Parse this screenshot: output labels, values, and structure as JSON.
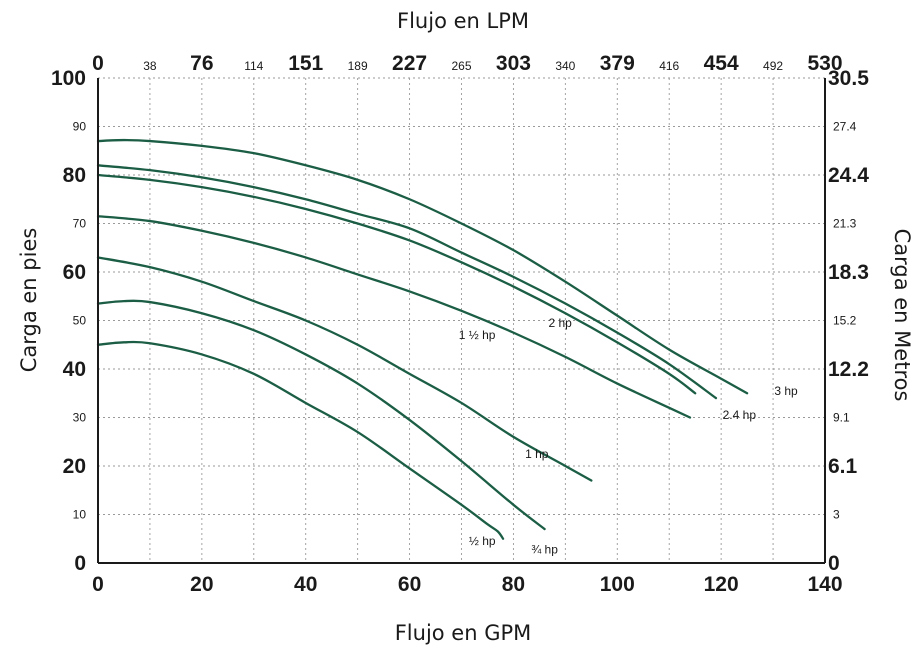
{
  "chart_data": {
    "type": "line",
    "title": "",
    "xlabel": "Flujo en GPM",
    "ylabel": "Carga en pies",
    "x2label": "Flujo en LPM",
    "y2label": "Carga en Metros",
    "xlim": [
      0,
      140
    ],
    "ylim": [
      0,
      100
    ],
    "grid": true,
    "colors": {
      "curve": "#1b5e45",
      "axis": "#1a1a1a",
      "grid": "#9a9a9a"
    },
    "x_ticks": [
      "0",
      "20",
      "40",
      "60",
      "80",
      "100",
      "120",
      "140"
    ],
    "x_tick_values": [
      0,
      20,
      40,
      60,
      80,
      100,
      120,
      140
    ],
    "y_ticks": [
      {
        "value": 100,
        "label": "100",
        "major": true
      },
      {
        "value": 90,
        "label": "90",
        "major": false
      },
      {
        "value": 80,
        "label": "80",
        "major": true
      },
      {
        "value": 70,
        "label": "70",
        "major": false
      },
      {
        "value": 60,
        "label": "60",
        "major": true
      },
      {
        "value": 50,
        "label": "50",
        "major": false
      },
      {
        "value": 40,
        "label": "40",
        "major": true
      },
      {
        "value": 30,
        "label": "30",
        "major": false
      },
      {
        "value": 20,
        "label": "20",
        "major": true
      },
      {
        "value": 10,
        "label": "10",
        "major": false
      },
      {
        "value": 0,
        "label": "0",
        "major": true
      }
    ],
    "x2_ticks": [
      {
        "value": 0,
        "label": "0",
        "major": true
      },
      {
        "value": 10,
        "label": "38",
        "major": false
      },
      {
        "value": 20,
        "label": "76",
        "major": true
      },
      {
        "value": 30,
        "label": "114",
        "major": false
      },
      {
        "value": 40,
        "label": "151",
        "major": true
      },
      {
        "value": 50,
        "label": "189",
        "major": false
      },
      {
        "value": 60,
        "label": "227",
        "major": true
      },
      {
        "value": 70,
        "label": "265",
        "major": false
      },
      {
        "value": 80,
        "label": "303",
        "major": true
      },
      {
        "value": 90,
        "label": "340",
        "major": false
      },
      {
        "value": 100,
        "label": "379",
        "major": true
      },
      {
        "value": 110,
        "label": "416",
        "major": false
      },
      {
        "value": 120,
        "label": "454",
        "major": true
      },
      {
        "value": 130,
        "label": "492",
        "major": false
      },
      {
        "value": 140,
        "label": "530",
        "major": true
      }
    ],
    "y2_ticks": [
      {
        "value": 100,
        "label": "30.5",
        "major": true
      },
      {
        "value": 90,
        "label": "27.4",
        "major": false
      },
      {
        "value": 80,
        "label": "24.4",
        "major": true
      },
      {
        "value": 70,
        "label": "21.3",
        "major": false
      },
      {
        "value": 60,
        "label": "18.3",
        "major": true
      },
      {
        "value": 50,
        "label": "15.2",
        "major": false
      },
      {
        "value": 40,
        "label": "12.2",
        "major": true
      },
      {
        "value": 30,
        "label": "9.1",
        "major": false
      },
      {
        "value": 20,
        "label": "6.1",
        "major": true
      },
      {
        "value": 10,
        "label": "3",
        "major": false
      },
      {
        "value": 0,
        "label": "0",
        "major": true
      }
    ],
    "series": [
      {
        "name": "½ hp",
        "x": [
          0,
          5,
          10,
          20,
          30,
          40,
          50,
          60,
          70,
          75,
          77,
          78
        ],
        "y": [
          45,
          45.5,
          45.3,
          43,
          39,
          33,
          27,
          19.5,
          12,
          8,
          6.5,
          5
        ]
      },
      {
        "name": "¾ hp",
        "x": [
          0,
          5,
          10,
          20,
          30,
          40,
          50,
          60,
          70,
          80,
          86
        ],
        "y": [
          53.5,
          54,
          53.8,
          51.5,
          48,
          43,
          37,
          29.5,
          21,
          12,
          7
        ]
      },
      {
        "name": "1 hp",
        "x": [
          0,
          10,
          20,
          30,
          40,
          50,
          60,
          70,
          80,
          90,
          95
        ],
        "y": [
          63,
          61,
          58,
          54,
          50,
          45,
          39,
          33,
          26,
          20,
          17
        ]
      },
      {
        "name": "1 ½ hp",
        "x": [
          0,
          10,
          20,
          30,
          40,
          50,
          60,
          70,
          80,
          90,
          100,
          110,
          114
        ],
        "y": [
          71.5,
          70.5,
          68.5,
          66,
          63,
          59.5,
          56,
          52,
          47.5,
          42.5,
          37,
          32,
          30
        ]
      },
      {
        "name": "2 hp",
        "x": [
          0,
          10,
          20,
          30,
          40,
          50,
          60,
          70,
          80,
          90,
          100,
          110,
          115
        ],
        "y": [
          80,
          79,
          77.5,
          75.5,
          73,
          70,
          66.5,
          62,
          57,
          51.5,
          45.5,
          39,
          35
        ]
      },
      {
        "name": "2.4 hp",
        "x": [
          0,
          10,
          20,
          30,
          40,
          50,
          60,
          70,
          80,
          90,
          100,
          110,
          119
        ],
        "y": [
          82,
          81,
          79.5,
          77.5,
          75,
          72,
          69,
          64,
          59,
          53.5,
          47.5,
          41,
          34
        ]
      },
      {
        "name": "3 hp",
        "x": [
          0,
          5,
          10,
          20,
          30,
          40,
          50,
          60,
          70,
          80,
          90,
          100,
          110,
          120,
          125
        ],
        "y": [
          87,
          87.2,
          87,
          86,
          84.5,
          82,
          79,
          75,
          70,
          64.5,
          58,
          51,
          44,
          38,
          35
        ]
      }
    ],
    "curve_labels": [
      {
        "text": "½ hp",
        "x": 74,
        "y": 4.5
      },
      {
        "text": "¾ hp",
        "x": 86,
        "y": 2.8
      },
      {
        "text": "1 hp",
        "x": 84.5,
        "y": 22.5
      },
      {
        "text": "1 ½ hp",
        "x": 73,
        "y": 47
      },
      {
        "text": "2 hp",
        "x": 89,
        "y": 49.5
      },
      {
        "text": "2.4 hp",
        "x": 123.5,
        "y": 30.5
      },
      {
        "text": "3 hp",
        "x": 132.5,
        "y": 35.5
      }
    ]
  }
}
